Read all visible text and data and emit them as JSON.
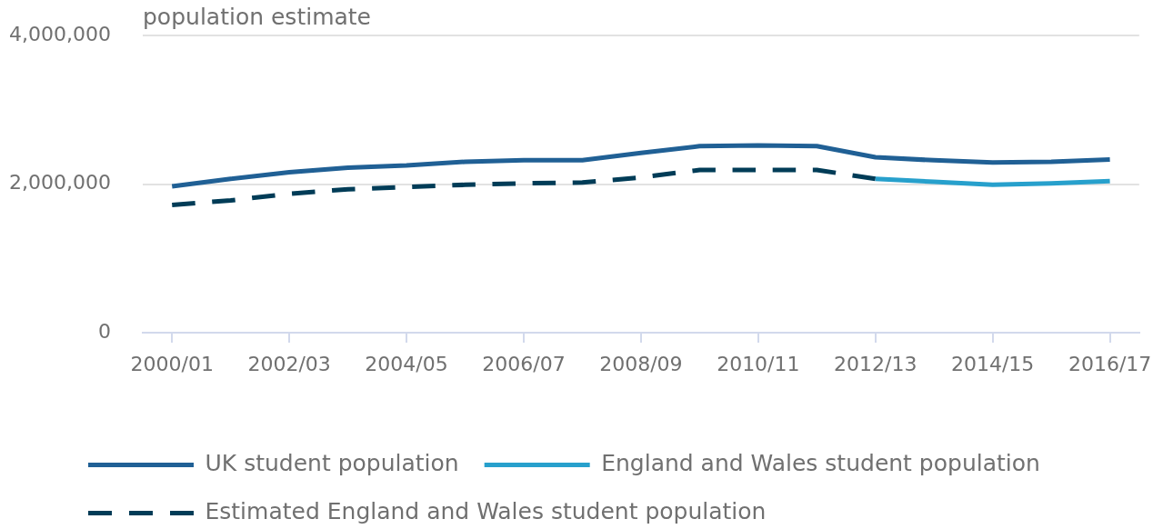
{
  "chart_data": {
    "type": "line",
    "ylabel": "population estimate",
    "categories": [
      "2000/01",
      null,
      "2002/03",
      null,
      "2004/05",
      null,
      "2006/07",
      null,
      "2008/09",
      null,
      "2010/11",
      null,
      "2012/13",
      null,
      "2014/15",
      null,
      "2016/17"
    ],
    "series": [
      {
        "name": "UK student population",
        "color": "#206095",
        "values": [
          1970000,
          2070000,
          2160000,
          2220000,
          2250000,
          2300000,
          2320000,
          2320000,
          2420000,
          2510000,
          2520000,
          2510000,
          2360000,
          2320000,
          2290000,
          2300000,
          2330000
        ]
      },
      {
        "name": "England and Wales student population",
        "color": "#27a0cc",
        "values": [
          null,
          null,
          null,
          null,
          null,
          null,
          null,
          null,
          null,
          null,
          null,
          null,
          2070000,
          2030000,
          1990000,
          2010000,
          2040000
        ]
      },
      {
        "name": "Estimated England and Wales student population",
        "color": "#003c57",
        "line_style": "dashed",
        "values": [
          1720000,
          1780000,
          1870000,
          1930000,
          1960000,
          1990000,
          2010000,
          2020000,
          2090000,
          2190000,
          2190000,
          2190000,
          2070000,
          null,
          null,
          null,
          null
        ]
      }
    ],
    "ylim": [
      0,
      4000000
    ],
    "yticks": [
      0,
      {
        "value": 2000000,
        "label": "2,000,000"
      },
      {
        "value": 4000000,
        "label": "4,000,000"
      }
    ],
    "grid": "y",
    "legend": "bottom left",
    "marker": "none",
    "line_style": "solid"
  }
}
